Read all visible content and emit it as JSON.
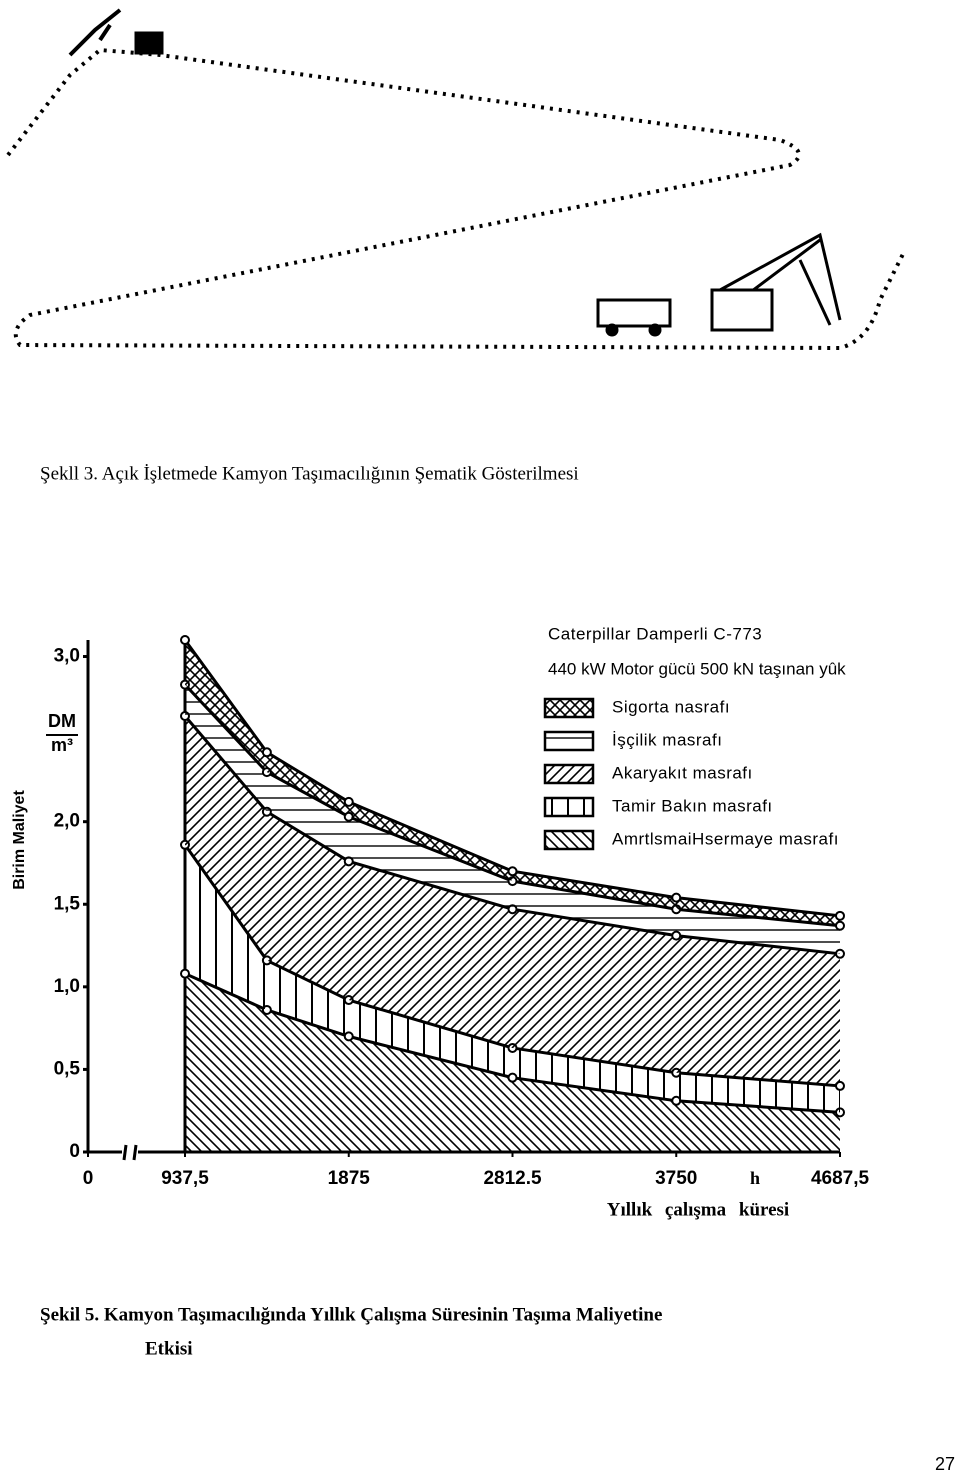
{
  "figure3": {
    "caption": "Şekll 3. Açık İşletmede Kamyon Taşımacılığının Şematik Gösterilmesi"
  },
  "chart_data": {
    "type": "area",
    "stacked": true,
    "title": "Caterpillar Damperli C-773",
    "subtitle": "440 kW Motor gücü 500 kN taşınan yûk",
    "y_label": "Birim Maliyet",
    "y_unit_numerator": "DM",
    "y_unit_denominator": "m³",
    "x_label": "Yıllık çalışma küresi",
    "x_unit": "h",
    "x": [
      937.5,
      1406.25,
      1875,
      2812.5,
      3750,
      4687.5
    ],
    "series": [
      {
        "name": "AmrtlsmaiHsermaye masrafı",
        "color": "#000000",
        "hatch": "backdiagonal",
        "values": [
          1.08,
          0.86,
          0.7,
          0.45,
          0.31,
          0.24
        ]
      },
      {
        "name": "Tamir Bakın masrafı",
        "color": "#000000",
        "hatch": "vertical",
        "values": [
          0.78,
          0.3,
          0.22,
          0.18,
          0.17,
          0.16
        ]
      },
      {
        "name": "Akaryakıt masrafı",
        "color": "#000000",
        "hatch": "diagonal",
        "values": [
          0.78,
          0.9,
          0.84,
          0.84,
          0.83,
          0.8
        ]
      },
      {
        "name": "İşçilik masrafı",
        "color": "#000000",
        "hatch": "horizontal",
        "values": [
          0.19,
          0.24,
          0.27,
          0.17,
          0.16,
          0.17
        ]
      },
      {
        "name": "Sigorta nasrafı",
        "color": "#000000",
        "hatch": "cross",
        "values": [
          0.27,
          0.12,
          0.09,
          0.06,
          0.07,
          0.06
        ]
      }
    ],
    "xlim": [
      937.5,
      4687.5
    ],
    "ylim": [
      0,
      3.1
    ],
    "xticks": [
      0,
      {
        "value": 937.5,
        "label": "937,5"
      },
      1875,
      2812.5,
      3750,
      {
        "value": 4687.5,
        "label": "4687,5"
      }
    ],
    "yticks": [
      0,
      {
        "value": 0.5,
        "label": "0,5"
      },
      {
        "value": 1,
        "label": "1,0"
      },
      {
        "value": 1.5,
        "label": "1,5"
      },
      {
        "value": 2,
        "label": "2,0"
      },
      {
        "value": 3,
        "label": "3,0"
      }
    ],
    "grid": false,
    "markers": true
  },
  "figure5": {
    "caption_line1": "Şekil 5. Kamyon Taşımacılığında Yıllık Çalışma Süresinin Taşıma Maliyetine",
    "caption_line2": "Etkisi"
  },
  "page_number": 27
}
